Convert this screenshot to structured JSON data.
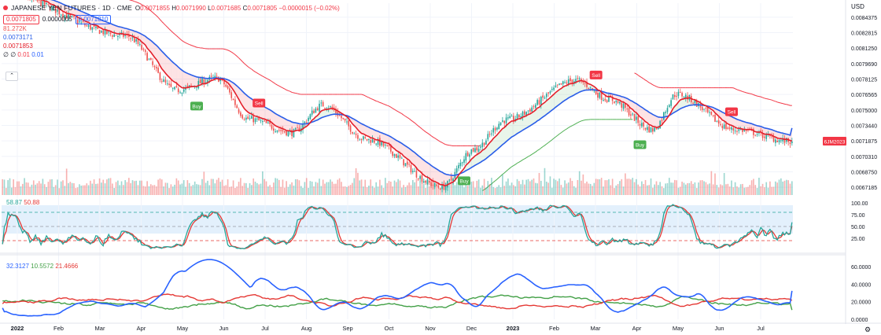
{
  "header": {
    "symbol": "JAPANESE YEN FUTURES · 1D · CME",
    "ohlc": [
      {
        "k": "O",
        "v": "0.0071855"
      },
      {
        "k": "H",
        "v": "0.0071990"
      },
      {
        "k": "L",
        "v": "0.0071685"
      },
      {
        "k": "C",
        "v": "0.0071805"
      },
      {
        "k": "",
        "v": "−0.0000015 (−0.02%)"
      }
    ],
    "bid": "0.0071805",
    "spread": "0.0000005",
    "ask": "0.0071810",
    "volume": "81.272K",
    "ma_blue": "0.0073171",
    "ma_red": "0.0071853",
    "supertrend_prefix": "∅ ∅",
    "supertrend_red": "0.01",
    "supertrend_blue": "0.01",
    "collapse_icon": "chevron-up-icon",
    "collapse_glyph": "⌃"
  },
  "currency": "USD",
  "price_axis": {
    "ticks": [
      "0.0084375",
      "0.0082815",
      "0.0081250",
      "0.0079690",
      "0.0078125",
      "0.0076565",
      "0.0075000",
      "0.0073440",
      "0.0071875",
      "0.0070310",
      "0.0068750",
      "0.0067185"
    ],
    "last_label": "6JM2023",
    "range": [
      0.00664,
      0.00858
    ]
  },
  "stoch_axis": {
    "ticks": [
      "100.00",
      "75.00",
      "50.00",
      "25.00"
    ],
    "title_k": "58.87",
    "title_d": "50.88",
    "range": [
      0,
      100
    ]
  },
  "dmi_axis": {
    "ticks": [
      "60.0000",
      "40.0000",
      "20.0000",
      "0.0000"
    ],
    "title_adx": "32.3127",
    "title_pdi": "10.5572",
    "title_mdi": "21.4666",
    "range": [
      0,
      68
    ]
  },
  "time_axis": [
    "2022",
    "Feb",
    "Mar",
    "Apr",
    "May",
    "Jun",
    "Jul",
    "Aug",
    "Sep",
    "Oct",
    "Nov",
    "Dec",
    "2023",
    "Feb",
    "Mar",
    "Apr",
    "May",
    "Jun",
    "Jul"
  ],
  "colors": {
    "up": "#26a69a",
    "down": "#ef5350",
    "ma_red": "#e4202b",
    "ma_blue": "#2a5ee8",
    "st_green": "#4caf50",
    "st_red": "#f23645",
    "stoch_k": "#26a69a",
    "stoch_d": "#e53935",
    "adx": "#2962ff",
    "pdi": "#43a047",
    "mdi": "#e53935"
  },
  "signals": [
    {
      "text": "Buy",
      "type": "buy",
      "bar": 106
    },
    {
      "text": "Sell",
      "type": "sell",
      "bar": 140
    },
    {
      "text": "Buy",
      "type": "buy",
      "bar": 252
    },
    {
      "text": "Sell",
      "type": "sell",
      "bar": 324
    },
    {
      "text": "Buy",
      "type": "buy",
      "bar": 348
    },
    {
      "text": "Sell",
      "type": "sell",
      "bar": 398
    }
  ],
  "settings_icon": "gear-icon",
  "settings_glyph": "⚙",
  "chart_data": {
    "type": "candlestick",
    "title": "JAPANESE YEN FUTURES · 1D · CME",
    "x_range": [
      "2022-01-03",
      "2023-06-08"
    ],
    "ylim": [
      0.00664,
      0.00858
    ],
    "key_closes": [
      {
        "x": "2022-01-03",
        "y": 0.00868
      },
      {
        "x": "2022-03-25",
        "y": 0.00825
      },
      {
        "x": "2022-04-28",
        "y": 0.0077
      },
      {
        "x": "2022-05-24",
        "y": 0.00782
      },
      {
        "x": "2022-06-14",
        "y": 0.00741
      },
      {
        "x": "2022-07-13",
        "y": 0.00727
      },
      {
        "x": "2022-08-02",
        "y": 0.00755
      },
      {
        "x": "2022-08-31",
        "y": 0.0072
      },
      {
        "x": "2022-10-20",
        "y": 0.00672
      },
      {
        "x": "2022-11-10",
        "y": 0.0071
      },
      {
        "x": "2022-12-01",
        "y": 0.0074
      },
      {
        "x": "2023-01-16",
        "y": 0.0078
      },
      {
        "x": "2023-02-07",
        "y": 0.00761
      },
      {
        "x": "2023-03-08",
        "y": 0.0073
      },
      {
        "x": "2023-03-24",
        "y": 0.00766
      },
      {
        "x": "2023-05-02",
        "y": 0.0073
      },
      {
        "x": "2023-06-08",
        "y": 0.0071805
      }
    ],
    "last_close": 0.0071805,
    "volume_last": 81272,
    "ma_blue_last": 0.0073171,
    "ma_red_last": 0.0071853,
    "stoch_last": {
      "k": 58.87,
      "d": 50.88
    },
    "stoch_levels": [
      80,
      50,
      20
    ],
    "dmi_last": {
      "adx": 32.3127,
      "pdi": 10.5572,
      "mdi": 21.4666
    },
    "adx_peak": {
      "x": "2022-05-20",
      "y": 68
    }
  }
}
